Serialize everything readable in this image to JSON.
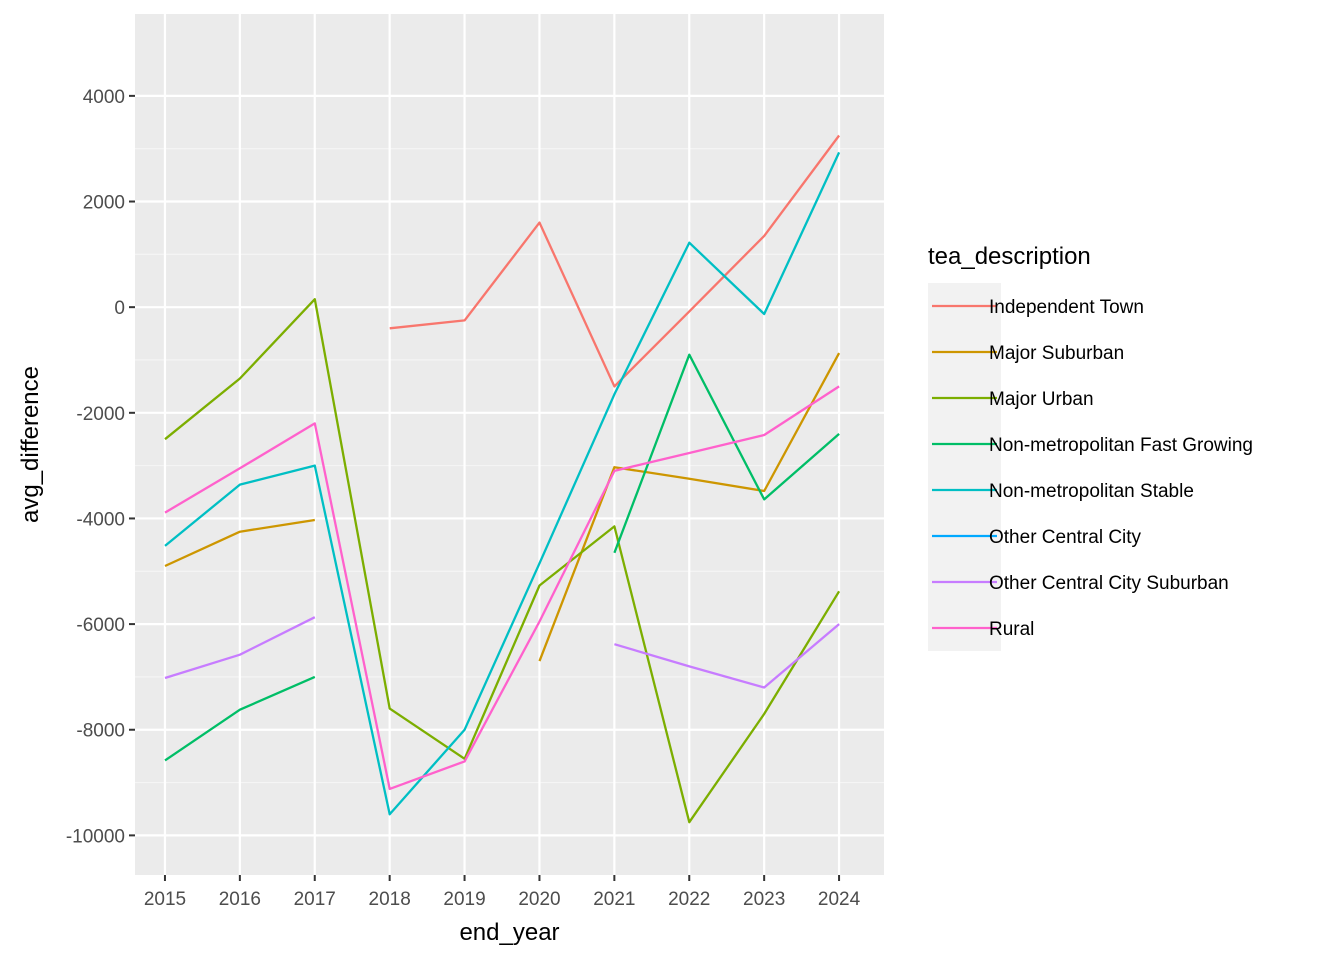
{
  "chart_data": {
    "type": "line",
    "xlabel": "end_year",
    "ylabel": "avg_difference",
    "x": [
      2015,
      2016,
      2017,
      2018,
      2019,
      2020,
      2021,
      2022,
      2023,
      2024
    ],
    "xlim": [
      2014.6,
      2024.6
    ],
    "ylim": [
      -10750,
      5550
    ],
    "yticks": [
      4000,
      2000,
      0,
      -2000,
      -4000,
      -6000,
      -8000,
      -10000
    ],
    "grid": true,
    "legend": {
      "title": "tea_description",
      "position": "right"
    },
    "series": [
      {
        "name": "Independent Town",
        "color": "#F8766D",
        "values": [
          null,
          null,
          null,
          -400,
          -250,
          1600,
          -1500,
          -80,
          1350,
          3250
        ]
      },
      {
        "name": "Major Suburban",
        "color": "#CD9600",
        "values": [
          -4900,
          -4250,
          -4030,
          null,
          null,
          -6700,
          -3030,
          -3250,
          -3480,
          -870
        ]
      },
      {
        "name": "Major Urban",
        "color": "#7CAE00",
        "values": [
          -2500,
          -1350,
          150,
          -7600,
          -8550,
          -5270,
          -4150,
          -9750,
          -7700,
          -5380
        ]
      },
      {
        "name": "Non-metropolitan Fast Growing",
        "color": "#00BE67",
        "values": [
          -8580,
          -7620,
          -7000,
          null,
          null,
          null,
          -4650,
          -900,
          -3640,
          -2400
        ]
      },
      {
        "name": "Non-metropolitan Stable",
        "color": "#00BFC4",
        "values": [
          -4520,
          -3360,
          -3000,
          -9600,
          -8000,
          -4850,
          -1650,
          1220,
          -130,
          2930
        ]
      },
      {
        "name": "Other Central City",
        "color": "#00A9FF",
        "values": [
          null,
          null,
          null,
          null,
          null,
          null,
          null,
          null,
          null,
          null
        ]
      },
      {
        "name": "Other Central City Suburban",
        "color": "#C77CFF",
        "values": [
          -7020,
          -6580,
          -5870,
          null,
          null,
          null,
          -6380,
          -6800,
          -7200,
          -6000
        ]
      },
      {
        "name": "Rural",
        "color": "#FF61CC",
        "values": [
          -3890,
          -3050,
          -2200,
          -9120,
          -8600,
          -5950,
          -3100,
          -2760,
          -2420,
          -1500
        ]
      }
    ]
  }
}
